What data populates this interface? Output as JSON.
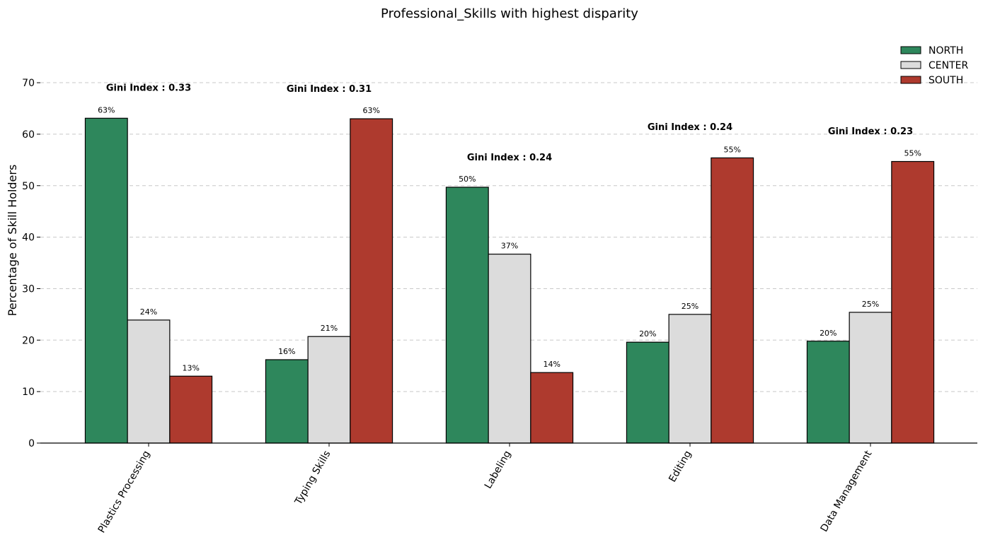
{
  "chart_data": {
    "type": "bar",
    "title": "Professional_Skills with highest disparity",
    "xlabel": "",
    "ylabel": "Percentage of Skill Holders",
    "ylim": [
      0,
      78
    ],
    "yticks": [
      0,
      10,
      20,
      30,
      40,
      50,
      60,
      70
    ],
    "grid": "horizontal dashed",
    "legend_position": "top-right",
    "categories": [
      "Plastics Processing",
      "Typing Skills",
      "Labeling",
      "Editing",
      "Data Management"
    ],
    "series": [
      {
        "name": "NORTH",
        "color": "#2e875c",
        "values": [
          63.1,
          16.2,
          49.7,
          19.6,
          19.8
        ],
        "labels": [
          "63%",
          "16%",
          "50%",
          "20%",
          "20%"
        ]
      },
      {
        "name": "CENTER",
        "color": "#dcdcdc",
        "values": [
          23.9,
          20.7,
          36.7,
          25.0,
          25.4
        ],
        "labels": [
          "24%",
          "21%",
          "37%",
          "25%",
          "25%"
        ]
      },
      {
        "name": "SOUTH",
        "color": "#ae3a2e",
        "values": [
          13.0,
          63.0,
          13.7,
          55.4,
          54.7
        ],
        "labels": [
          "13%",
          "63%",
          "14%",
          "55%",
          "55%"
        ]
      }
    ],
    "annotations": [
      {
        "prefix": "Gini Index",
        "value": "0.33",
        "y": 69.1
      },
      {
        "prefix": "Gini Index",
        "value": "0.31",
        "y": 68.9
      },
      {
        "prefix": "Gini Index",
        "value": "0.24",
        "y": 55.6
      },
      {
        "prefix": "Gini Index",
        "value": "0.24",
        "y": 61.5
      },
      {
        "prefix": "Gini Index",
        "value": "0.23",
        "y": 60.7
      }
    ]
  }
}
